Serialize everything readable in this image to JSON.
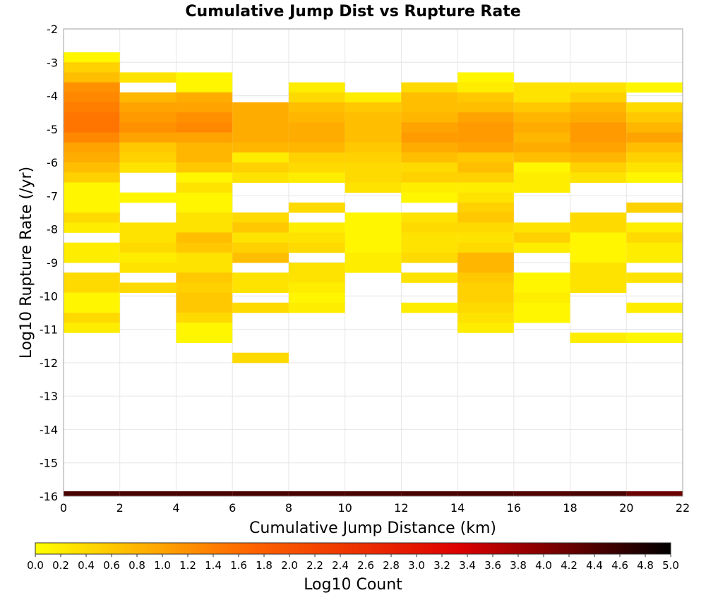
{
  "chart_data": {
    "type": "heatmap",
    "title": "Cumulative Jump Dist vs Rupture Rate",
    "xlabel": "Cumulative Jump Distance (km)",
    "ylabel": "Log10 Rupture Rate (/yr)",
    "xlim": [
      0,
      22
    ],
    "ylim": [
      -16,
      -2
    ],
    "x_ticks": [
      "0",
      "2",
      "4",
      "6",
      "8",
      "10",
      "12",
      "14",
      "16",
      "18",
      "20",
      "22"
    ],
    "y_ticks": [
      "-2",
      "-3",
      "-4",
      "-5",
      "-6",
      "-7",
      "-8",
      "-9",
      "-10",
      "-11",
      "-12",
      "-13",
      "-14",
      "-15",
      "-16"
    ],
    "x_bin_width": 2,
    "y_bin_height": 0.3,
    "grid": true,
    "colorbar": {
      "label": "Log10 Count",
      "min": 0.0,
      "max": 5.0,
      "ticks": [
        "0.0",
        "0.2",
        "0.4",
        "0.6",
        "0.8",
        "1.0",
        "1.2",
        "1.4",
        "1.6",
        "1.8",
        "2.0",
        "2.2",
        "2.4",
        "2.6",
        "2.8",
        "3.0",
        "3.2",
        "3.4",
        "3.6",
        "3.8",
        "4.0",
        "4.2",
        "4.4",
        "4.6",
        "4.8",
        "5.0"
      ],
      "colors": [
        "#ffff00",
        "#ff6600",
        "#dd0000",
        "#000000"
      ]
    },
    "columns": [
      {
        "x": [
          0,
          2
        ],
        "cells": [
          [
            -2.85,
            0.1
          ],
          [
            -3.15,
            0.5
          ],
          [
            -3.45,
            0.7
          ],
          [
            -3.75,
            1.2
          ],
          [
            -4.05,
            1.3
          ],
          [
            -4.35,
            1.4
          ],
          [
            -4.65,
            1.5
          ],
          [
            -4.95,
            1.5
          ],
          [
            -5.25,
            1.3
          ],
          [
            -5.55,
            1.0
          ],
          [
            -5.85,
            0.9
          ],
          [
            -6.15,
            0.7
          ],
          [
            -6.45,
            0.5
          ],
          [
            -6.75,
            0.1
          ],
          [
            -7.05,
            0.1
          ],
          [
            -7.35,
            0.1
          ],
          [
            -7.65,
            0.4
          ],
          [
            -7.95,
            0.2
          ],
          [
            -8.55,
            0.2
          ],
          [
            -8.85,
            0.2
          ],
          [
            -9.45,
            0.4
          ],
          [
            -9.75,
            0.4
          ],
          [
            -10.05,
            0.1
          ],
          [
            -10.35,
            0.1
          ],
          [
            -10.65,
            0.4
          ],
          [
            -10.95,
            0.2
          ]
        ]
      },
      {
        "x": [
          2,
          4
        ],
        "cells": [
          [
            -3.45,
            0.3
          ],
          [
            -4.05,
            0.8
          ],
          [
            -4.35,
            1.0
          ],
          [
            -4.65,
            1.1
          ],
          [
            -4.95,
            1.2
          ],
          [
            -5.25,
            1.0
          ],
          [
            -5.55,
            0.6
          ],
          [
            -5.85,
            0.5
          ],
          [
            -6.15,
            0.3
          ],
          [
            -7.05,
            0.1
          ],
          [
            -7.95,
            0.3
          ],
          [
            -8.25,
            0.3
          ],
          [
            -8.55,
            0.4
          ],
          [
            -8.85,
            0.2
          ],
          [
            -9.15,
            0.3
          ],
          [
            -9.75,
            0.4
          ]
        ]
      },
      {
        "x": [
          4,
          6
        ],
        "cells": [
          [
            -3.45,
            0.1
          ],
          [
            -3.75,
            0.1
          ],
          [
            -4.05,
            0.9
          ],
          [
            -4.35,
            1.0
          ],
          [
            -4.65,
            1.2
          ],
          [
            -4.95,
            1.3
          ],
          [
            -5.25,
            1.0
          ],
          [
            -5.55,
            0.8
          ],
          [
            -5.85,
            0.8
          ],
          [
            -6.15,
            0.6
          ],
          [
            -6.45,
            0.1
          ],
          [
            -6.75,
            0.3
          ],
          [
            -7.05,
            0.1
          ],
          [
            -7.35,
            0.1
          ],
          [
            -7.65,
            0.3
          ],
          [
            -7.95,
            0.3
          ],
          [
            -8.25,
            0.7
          ],
          [
            -8.55,
            0.6
          ],
          [
            -8.85,
            0.3
          ],
          [
            -9.15,
            0.3
          ],
          [
            -9.45,
            0.6
          ],
          [
            -9.75,
            0.5
          ],
          [
            -10.05,
            0.6
          ],
          [
            -10.35,
            0.6
          ],
          [
            -10.65,
            0.4
          ],
          [
            -10.95,
            0.1
          ],
          [
            -11.25,
            0.1
          ]
        ]
      },
      {
        "x": [
          6,
          8
        ],
        "cells": [
          [
            -4.35,
            0.9
          ],
          [
            -4.65,
            0.9
          ],
          [
            -4.95,
            0.9
          ],
          [
            -5.25,
            0.9
          ],
          [
            -5.55,
            0.8
          ],
          [
            -5.85,
            0.2
          ],
          [
            -6.15,
            0.5
          ],
          [
            -6.45,
            0.3
          ],
          [
            -7.65,
            0.4
          ],
          [
            -7.95,
            0.6
          ],
          [
            -8.25,
            0.3
          ],
          [
            -8.55,
            0.5
          ],
          [
            -8.85,
            0.7
          ],
          [
            -9.45,
            0.3
          ],
          [
            -9.75,
            0.3
          ],
          [
            -10.35,
            0.4
          ],
          [
            -11.85,
            0.4
          ]
        ]
      },
      {
        "x": [
          8,
          10
        ],
        "cells": [
          [
            -3.75,
            0.2
          ],
          [
            -4.05,
            0.4
          ],
          [
            -4.35,
            0.7
          ],
          [
            -4.65,
            0.8
          ],
          [
            -4.95,
            0.9
          ],
          [
            -5.25,
            0.9
          ],
          [
            -5.55,
            0.8
          ],
          [
            -5.85,
            0.5
          ],
          [
            -6.15,
            0.4
          ],
          [
            -6.45,
            0.2
          ],
          [
            -7.35,
            0.4
          ],
          [
            -7.95,
            0.2
          ],
          [
            -8.25,
            0.3
          ],
          [
            -8.55,
            0.4
          ],
          [
            -9.15,
            0.3
          ],
          [
            -9.45,
            0.3
          ],
          [
            -9.75,
            0.2
          ],
          [
            -10.05,
            0.1
          ],
          [
            -10.35,
            0.2
          ]
        ]
      },
      {
        "x": [
          10,
          12
        ],
        "cells": [
          [
            -4.05,
            0.2
          ],
          [
            -4.35,
            0.6
          ],
          [
            -4.65,
            0.7
          ],
          [
            -4.95,
            0.7
          ],
          [
            -5.25,
            0.7
          ],
          [
            -5.55,
            0.6
          ],
          [
            -5.85,
            0.5
          ],
          [
            -6.15,
            0.4
          ],
          [
            -6.45,
            0.4
          ],
          [
            -6.75,
            0.3
          ],
          [
            -7.65,
            0.1
          ],
          [
            -7.95,
            0.1
          ],
          [
            -8.25,
            0.1
          ],
          [
            -8.55,
            0.1
          ],
          [
            -8.85,
            0.2
          ],
          [
            -9.15,
            0.2
          ]
        ]
      },
      {
        "x": [
          12,
          14
        ],
        "cells": [
          [
            -3.75,
            0.4
          ],
          [
            -4.05,
            0.7
          ],
          [
            -4.35,
            0.7
          ],
          [
            -4.65,
            0.8
          ],
          [
            -4.95,
            1.0
          ],
          [
            -5.25,
            1.1
          ],
          [
            -5.55,
            0.9
          ],
          [
            -5.85,
            0.7
          ],
          [
            -6.15,
            0.4
          ],
          [
            -6.45,
            0.5
          ],
          [
            -6.75,
            0.2
          ],
          [
            -7.05,
            0.1
          ],
          [
            -7.65,
            0.3
          ],
          [
            -7.95,
            0.4
          ],
          [
            -8.25,
            0.3
          ],
          [
            -8.55,
            0.3
          ],
          [
            -8.85,
            0.4
          ],
          [
            -9.45,
            0.3
          ],
          [
            -10.35,
            0.2
          ]
        ]
      },
      {
        "x": [
          14,
          16
        ],
        "cells": [
          [
            -3.45,
            0.1
          ],
          [
            -3.75,
            0.2
          ],
          [
            -4.05,
            0.6
          ],
          [
            -4.35,
            0.7
          ],
          [
            -4.65,
            1.0
          ],
          [
            -4.95,
            1.1
          ],
          [
            -5.25,
            1.1
          ],
          [
            -5.55,
            1.0
          ],
          [
            -5.85,
            0.6
          ],
          [
            -6.15,
            0.7
          ],
          [
            -6.45,
            0.5
          ],
          [
            -6.75,
            0.2
          ],
          [
            -7.05,
            0.3
          ],
          [
            -7.35,
            0.5
          ],
          [
            -7.65,
            0.6
          ],
          [
            -7.95,
            0.4
          ],
          [
            -8.25,
            0.3
          ],
          [
            -8.55,
            0.4
          ],
          [
            -8.85,
            0.8
          ],
          [
            -9.15,
            0.8
          ],
          [
            -9.45,
            0.6
          ],
          [
            -9.75,
            0.5
          ],
          [
            -10.05,
            0.5
          ],
          [
            -10.35,
            0.4
          ],
          [
            -10.65,
            0.3
          ],
          [
            -10.95,
            0.2
          ]
        ]
      },
      {
        "x": [
          16,
          18
        ],
        "cells": [
          [
            -3.75,
            0.3
          ],
          [
            -4.05,
            0.3
          ],
          [
            -4.35,
            0.6
          ],
          [
            -4.65,
            0.8
          ],
          [
            -4.95,
            0.9
          ],
          [
            -5.25,
            0.8
          ],
          [
            -5.55,
            0.9
          ],
          [
            -5.85,
            0.7
          ],
          [
            -6.15,
            0.1
          ],
          [
            -6.45,
            0.2
          ],
          [
            -6.75,
            0.2
          ],
          [
            -7.95,
            0.3
          ],
          [
            -8.25,
            0.5
          ],
          [
            -8.55,
            0.2
          ],
          [
            -9.45,
            0.1
          ],
          [
            -9.75,
            0.1
          ],
          [
            -10.05,
            0.2
          ],
          [
            -10.35,
            0.1
          ],
          [
            -10.65,
            0.1
          ]
        ]
      },
      {
        "x": [
          18,
          20
        ],
        "cells": [
          [
            -3.75,
            0.3
          ],
          [
            -4.05,
            0.5
          ],
          [
            -4.35,
            0.8
          ],
          [
            -4.65,
            0.9
          ],
          [
            -4.95,
            1.1
          ],
          [
            -5.25,
            1.1
          ],
          [
            -5.55,
            1.0
          ],
          [
            -5.85,
            0.8
          ],
          [
            -6.15,
            0.5
          ],
          [
            -6.45,
            0.3
          ],
          [
            -7.65,
            0.4
          ],
          [
            -7.95,
            0.4
          ],
          [
            -8.25,
            0.1
          ],
          [
            -8.55,
            0.1
          ],
          [
            -8.85,
            0.1
          ],
          [
            -9.15,
            0.3
          ],
          [
            -9.45,
            0.3
          ],
          [
            -9.75,
            0.3
          ],
          [
            -11.25,
            0.2
          ]
        ]
      },
      {
        "x": [
          20,
          22
        ],
        "cells": [
          [
            -3.75,
            0.1
          ],
          [
            -4.35,
            0.4
          ],
          [
            -4.65,
            0.6
          ],
          [
            -4.95,
            0.8
          ],
          [
            -5.25,
            1.0
          ],
          [
            -5.55,
            0.7
          ],
          [
            -5.85,
            0.5
          ],
          [
            -6.15,
            0.3
          ],
          [
            -6.45,
            0.1
          ],
          [
            -7.35,
            0.5
          ],
          [
            -7.95,
            0.2
          ],
          [
            -8.25,
            0.4
          ],
          [
            -8.55,
            0.2
          ],
          [
            -8.85,
            0.2
          ],
          [
            -9.45,
            0.3
          ],
          [
            -10.35,
            0.2
          ],
          [
            -11.25,
            0.1
          ]
        ]
      }
    ],
    "floor_row": {
      "y": -16.0,
      "values": [
        4.45,
        4.45,
        4.45,
        4.45,
        4.45,
        4.45,
        4.45,
        4.45,
        4.4,
        4.45,
        4.2
      ]
    }
  }
}
